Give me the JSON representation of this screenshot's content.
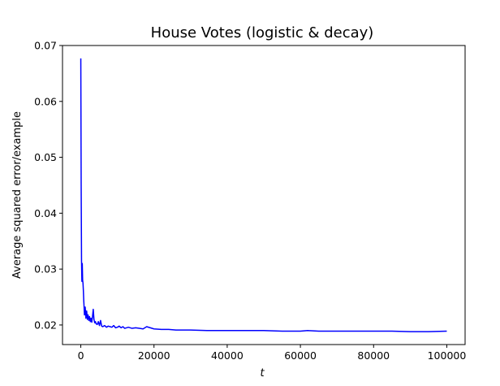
{
  "chart_data": {
    "type": "line",
    "title": "House Votes (logistic & decay)",
    "xlabel": "t",
    "ylabel": "Average squared error/example",
    "xlim": [
      -5000,
      105000
    ],
    "ylim": [
      0.0165,
      0.07
    ],
    "xticks": [
      0,
      20000,
      40000,
      60000,
      80000,
      100000
    ],
    "xtick_labels": [
      "0",
      "20000",
      "40000",
      "60000",
      "80000",
      "100000"
    ],
    "yticks": [
      0.02,
      0.03,
      0.04,
      0.05,
      0.06,
      0.07
    ],
    "ytick_labels": [
      "0.02",
      "0.03",
      "0.04",
      "0.05",
      "0.06",
      "0.07"
    ],
    "grid": false,
    "series": [
      {
        "color": "#0000ff",
        "x": [
          0,
          100,
          200,
          300,
          400,
          500,
          600,
          700,
          800,
          900,
          1000,
          1200,
          1400,
          1600,
          1800,
          2000,
          2200,
          2400,
          2600,
          2800,
          3000,
          3200,
          3400,
          3600,
          3800,
          4000,
          4200,
          4500,
          4800,
          5100,
          5400,
          5700,
          6000,
          6500,
          7000,
          7500,
          8000,
          8500,
          9000,
          9500,
          10000,
          10500,
          11000,
          11500,
          12000,
          13000,
          14000,
          15000,
          16000,
          17000,
          18000,
          19000,
          20000,
          22000,
          24000,
          26000,
          28000,
          30000,
          35000,
          40000,
          45000,
          50000,
          55000,
          60000,
          62000,
          65000,
          70000,
          75000,
          80000,
          85000,
          90000,
          95000,
          100000
        ],
        "y": [
          0.0677,
          0.045,
          0.0315,
          0.0278,
          0.031,
          0.028,
          0.0275,
          0.0262,
          0.0245,
          0.0232,
          0.0218,
          0.0232,
          0.0212,
          0.0225,
          0.021,
          0.0218,
          0.0208,
          0.0215,
          0.0206,
          0.0212,
          0.0205,
          0.0215,
          0.0228,
          0.021,
          0.0204,
          0.0206,
          0.0202,
          0.0201,
          0.0206,
          0.0199,
          0.0208,
          0.0198,
          0.0197,
          0.0199,
          0.0196,
          0.0198,
          0.0197,
          0.0196,
          0.0199,
          0.0195,
          0.0196,
          0.0198,
          0.0195,
          0.0197,
          0.0194,
          0.0196,
          0.0194,
          0.0195,
          0.0194,
          0.0193,
          0.0197,
          0.0195,
          0.0193,
          0.0192,
          0.0192,
          0.0191,
          0.0191,
          0.0191,
          0.019,
          0.019,
          0.019,
          0.019,
          0.0189,
          0.0189,
          0.019,
          0.0189,
          0.0189,
          0.0189,
          0.0189,
          0.0189,
          0.0188,
          0.0188,
          0.0189
        ]
      }
    ]
  }
}
